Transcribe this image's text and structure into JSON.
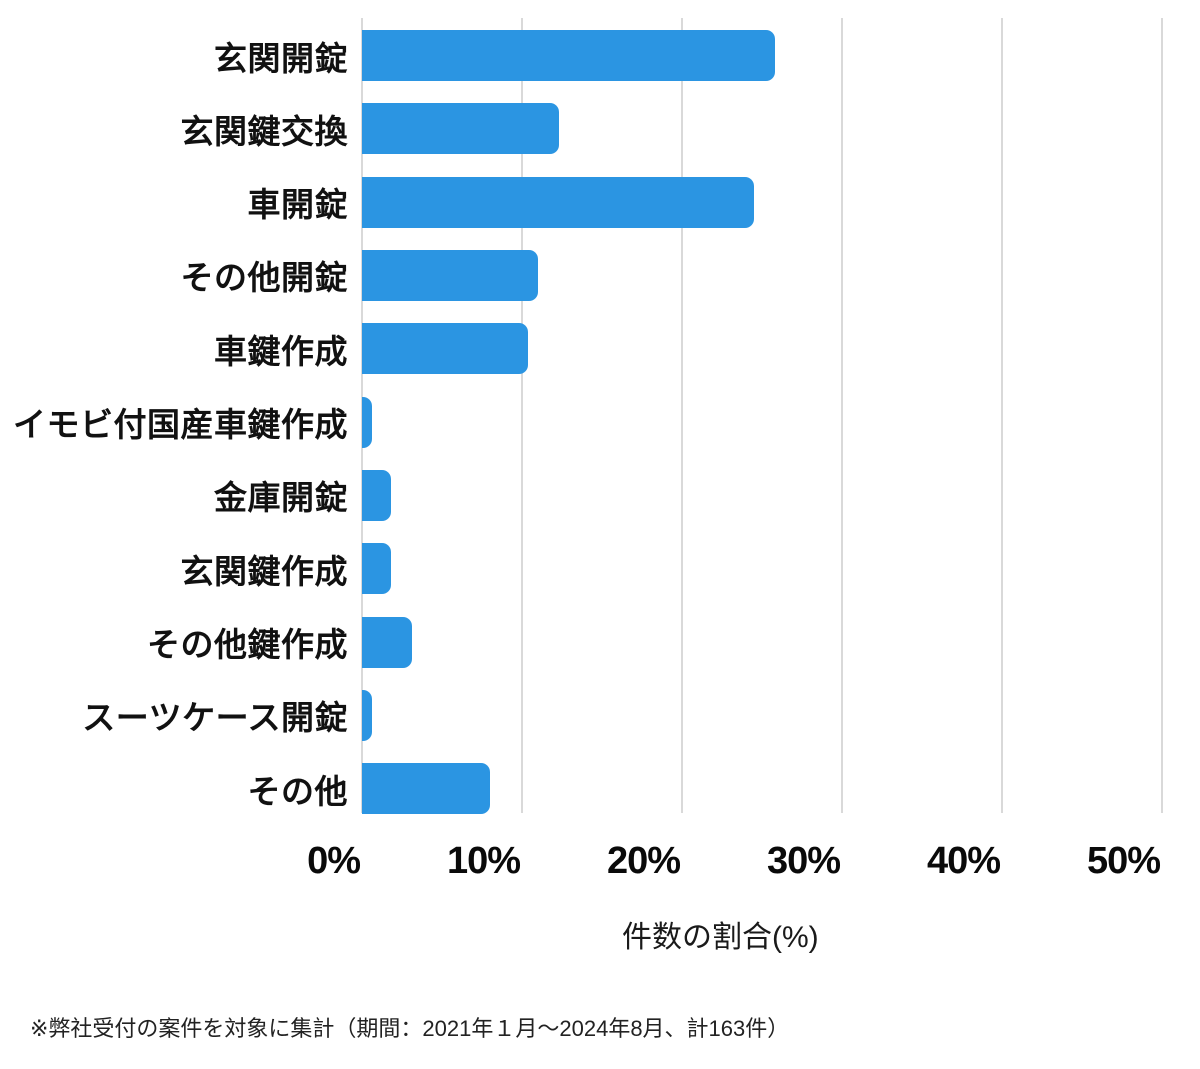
{
  "chart_data": {
    "type": "bar",
    "orientation": "horizontal",
    "title": "",
    "xlabel": "件数の割合(%)",
    "ylabel": "",
    "categories": [
      "玄関開錠",
      "玄関鍵交換",
      "車開錠",
      "その他開錠",
      "車鍵作成",
      "イモビ付国産車鍵作成",
      "金庫開錠",
      "玄関鍵作成",
      "その他鍵作成",
      "スーツケース開錠",
      "その他"
    ],
    "values": [
      25.8,
      12.3,
      24.5,
      11.0,
      10.4,
      0.6,
      1.8,
      1.8,
      3.1,
      0.6,
      8.0
    ],
    "unit": "%",
    "x_ticks": [
      "0%",
      "10%",
      "20%",
      "30%",
      "40%",
      "50%"
    ],
    "xlim": [
      0,
      50
    ],
    "grid": true,
    "legend": "none",
    "bar_color": "#2B95E2",
    "gridline_color": "#D9D9D9"
  },
  "footnote": "※弊社受付の案件を対象に集計（期間：2021年１月～2024年8月、計163件）"
}
